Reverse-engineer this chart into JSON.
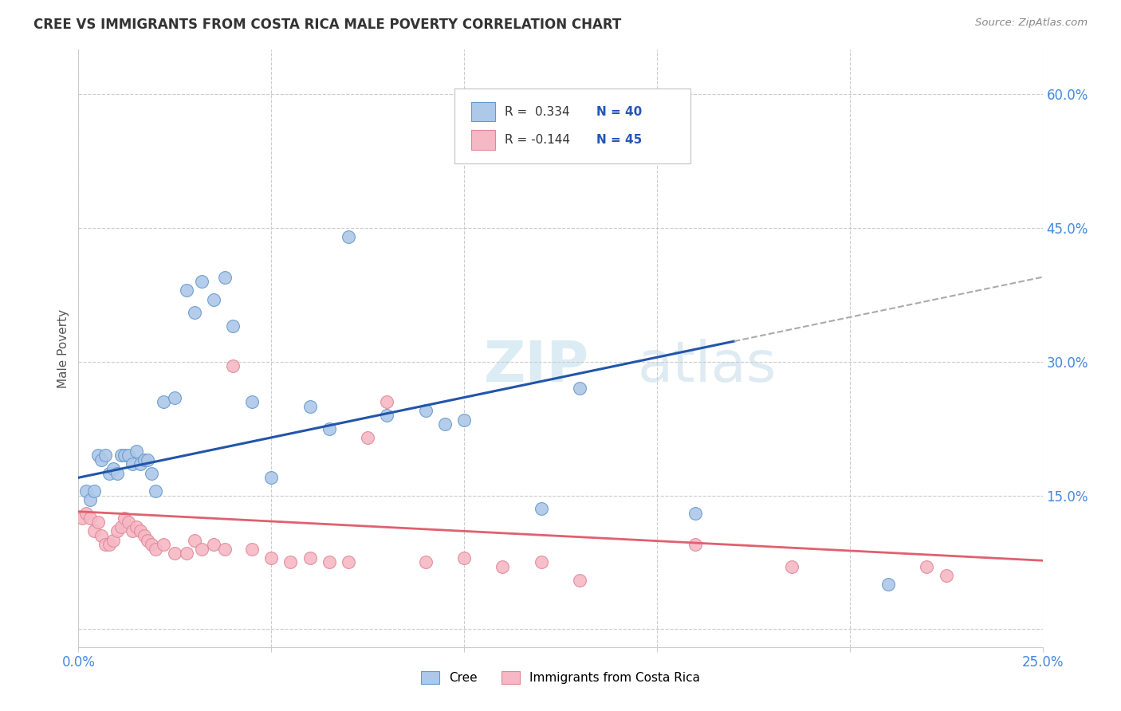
{
  "title": "CREE VS IMMIGRANTS FROM COSTA RICA MALE POVERTY CORRELATION CHART",
  "source": "Source: ZipAtlas.com",
  "ylabel": "Male Poverty",
  "xlim": [
    0.0,
    0.25
  ],
  "ylim": [
    -0.02,
    0.65
  ],
  "yticks": [
    0.0,
    0.15,
    0.3,
    0.45,
    0.6
  ],
  "ytick_labels": [
    "",
    "15.0%",
    "30.0%",
    "45.0%",
    "60.0%"
  ],
  "xtick_positions": [
    0.0,
    0.05,
    0.1,
    0.15,
    0.2,
    0.25
  ],
  "xtick_labels": [
    "0.0%",
    "",
    "",
    "",
    "",
    "25.0%"
  ],
  "cree_fill_color": "#adc8e8",
  "cree_edge_color": "#6699cc",
  "cr_fill_color": "#f5b8c4",
  "cr_edge_color": "#e08898",
  "cree_line_color": "#2255aa",
  "cr_line_color": "#e06070",
  "dash_color": "#aaaaaa",
  "watermark_color": "#cce4f0",
  "grid_color": "#cccccc",
  "right_tick_color": "#4488dd",
  "bottom_tick_color": "#4488dd",
  "cree_x": [
    0.002,
    0.003,
    0.004,
    0.005,
    0.006,
    0.007,
    0.008,
    0.009,
    0.01,
    0.011,
    0.012,
    0.013,
    0.014,
    0.015,
    0.016,
    0.017,
    0.018,
    0.019,
    0.02,
    0.022,
    0.025,
    0.028,
    0.03,
    0.032,
    0.035,
    0.038,
    0.04,
    0.045,
    0.05,
    0.06,
    0.065,
    0.07,
    0.08,
    0.09,
    0.095,
    0.1,
    0.12,
    0.13,
    0.16,
    0.21
  ],
  "cree_y": [
    0.155,
    0.145,
    0.155,
    0.195,
    0.19,
    0.195,
    0.175,
    0.18,
    0.175,
    0.195,
    0.195,
    0.195,
    0.185,
    0.2,
    0.185,
    0.19,
    0.19,
    0.175,
    0.155,
    0.255,
    0.26,
    0.38,
    0.355,
    0.39,
    0.37,
    0.395,
    0.34,
    0.255,
    0.17,
    0.25,
    0.225,
    0.44,
    0.24,
    0.245,
    0.23,
    0.235,
    0.135,
    0.27,
    0.13,
    0.05
  ],
  "cr_x": [
    0.001,
    0.002,
    0.003,
    0.004,
    0.005,
    0.006,
    0.007,
    0.008,
    0.009,
    0.01,
    0.011,
    0.012,
    0.013,
    0.014,
    0.015,
    0.016,
    0.017,
    0.018,
    0.019,
    0.02,
    0.022,
    0.025,
    0.028,
    0.03,
    0.032,
    0.035,
    0.038,
    0.04,
    0.045,
    0.05,
    0.055,
    0.06,
    0.065,
    0.07,
    0.075,
    0.08,
    0.09,
    0.1,
    0.11,
    0.12,
    0.13,
    0.16,
    0.185,
    0.22,
    0.225
  ],
  "cr_y": [
    0.125,
    0.13,
    0.125,
    0.11,
    0.12,
    0.105,
    0.095,
    0.095,
    0.1,
    0.11,
    0.115,
    0.125,
    0.12,
    0.11,
    0.115,
    0.11,
    0.105,
    0.1,
    0.095,
    0.09,
    0.095,
    0.085,
    0.085,
    0.1,
    0.09,
    0.095,
    0.09,
    0.295,
    0.09,
    0.08,
    0.075,
    0.08,
    0.075,
    0.075,
    0.215,
    0.255,
    0.075,
    0.08,
    0.07,
    0.075,
    0.055,
    0.095,
    0.07,
    0.07,
    0.06
  ]
}
